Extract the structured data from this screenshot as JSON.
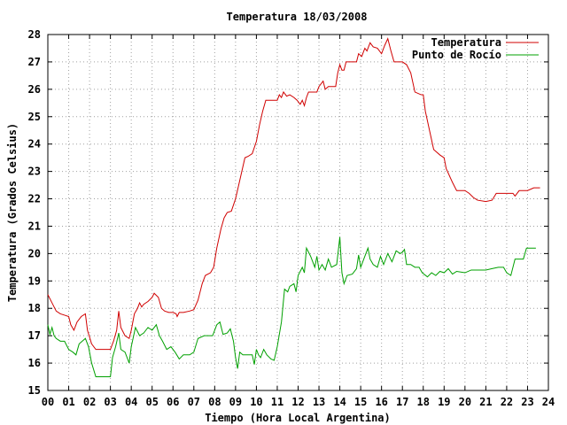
{
  "chart_data": {
    "type": "line",
    "title": "Temperatura 18/03/2008",
    "xlabel": "Tiempo (Hora Local Argentina)",
    "ylabel": "Temperatura (Grados Celsius)",
    "xlim": [
      0,
      24
    ],
    "ylim": [
      15,
      28
    ],
    "grid": true,
    "legend_position": "top-right",
    "x_ticks": [
      {
        "v": 0,
        "label": "00"
      },
      {
        "v": 1,
        "label": "01"
      },
      {
        "v": 2,
        "label": "02"
      },
      {
        "v": 3,
        "label": "03"
      },
      {
        "v": 4,
        "label": "04"
      },
      {
        "v": 5,
        "label": "05"
      },
      {
        "v": 6,
        "label": "06"
      },
      {
        "v": 7,
        "label": "07"
      },
      {
        "v": 8,
        "label": "08"
      },
      {
        "v": 9,
        "label": "09"
      },
      {
        "v": 10,
        "label": "10"
      },
      {
        "v": 11,
        "label": "11"
      },
      {
        "v": 12,
        "label": "12"
      },
      {
        "v": 13,
        "label": "13"
      },
      {
        "v": 14,
        "label": "14"
      },
      {
        "v": 15,
        "label": "15"
      },
      {
        "v": 16,
        "label": "16"
      },
      {
        "v": 17,
        "label": "17"
      },
      {
        "v": 18,
        "label": "18"
      },
      {
        "v": 19,
        "label": "19"
      },
      {
        "v": 20,
        "label": "20"
      },
      {
        "v": 21,
        "label": "21"
      },
      {
        "v": 22,
        "label": "22"
      },
      {
        "v": 23,
        "label": "23"
      },
      {
        "v": 24,
        "label": "24"
      }
    ],
    "y_ticks": [
      {
        "v": 15,
        "label": "15"
      },
      {
        "v": 16,
        "label": "16"
      },
      {
        "v": 17,
        "label": "17"
      },
      {
        "v": 18,
        "label": "18"
      },
      {
        "v": 19,
        "label": "19"
      },
      {
        "v": 20,
        "label": "20"
      },
      {
        "v": 21,
        "label": "21"
      },
      {
        "v": 22,
        "label": "22"
      },
      {
        "v": 23,
        "label": "23"
      },
      {
        "v": 24,
        "label": "24"
      },
      {
        "v": 25,
        "label": "25"
      },
      {
        "v": 26,
        "label": "26"
      },
      {
        "v": 27,
        "label": "27"
      },
      {
        "v": 28,
        "label": "28"
      }
    ],
    "series": [
      {
        "name": "Temperatura",
        "color": "#d00000",
        "points": [
          [
            0.0,
            18.5
          ],
          [
            0.2,
            18.2
          ],
          [
            0.4,
            17.9
          ],
          [
            0.6,
            17.8
          ],
          [
            0.8,
            17.75
          ],
          [
            1.0,
            17.7
          ],
          [
            1.1,
            17.4
          ],
          [
            1.25,
            17.2
          ],
          [
            1.4,
            17.5
          ],
          [
            1.6,
            17.7
          ],
          [
            1.8,
            17.8
          ],
          [
            1.9,
            17.2
          ],
          [
            2.1,
            16.7
          ],
          [
            2.3,
            16.5
          ],
          [
            2.5,
            16.5
          ],
          [
            2.8,
            16.5
          ],
          [
            3.0,
            16.5
          ],
          [
            3.15,
            16.8
          ],
          [
            3.3,
            17.2
          ],
          [
            3.4,
            17.9
          ],
          [
            3.5,
            17.3
          ],
          [
            3.7,
            17.0
          ],
          [
            3.9,
            16.9
          ],
          [
            4.0,
            17.2
          ],
          [
            4.15,
            17.8
          ],
          [
            4.3,
            18.0
          ],
          [
            4.4,
            18.2
          ],
          [
            4.5,
            18.05
          ],
          [
            4.6,
            18.15
          ],
          [
            4.8,
            18.25
          ],
          [
            5.0,
            18.4
          ],
          [
            5.1,
            18.55
          ],
          [
            5.3,
            18.4
          ],
          [
            5.45,
            18.0
          ],
          [
            5.6,
            17.9
          ],
          [
            5.8,
            17.85
          ],
          [
            6.0,
            17.85
          ],
          [
            6.15,
            17.8
          ],
          [
            6.2,
            17.7
          ],
          [
            6.3,
            17.85
          ],
          [
            6.5,
            17.85
          ],
          [
            6.8,
            17.9
          ],
          [
            7.0,
            17.95
          ],
          [
            7.2,
            18.3
          ],
          [
            7.4,
            18.9
          ],
          [
            7.55,
            19.2
          ],
          [
            7.8,
            19.3
          ],
          [
            7.95,
            19.5
          ],
          [
            8.1,
            20.2
          ],
          [
            8.3,
            20.9
          ],
          [
            8.45,
            21.3
          ],
          [
            8.6,
            21.5
          ],
          [
            8.8,
            21.55
          ],
          [
            9.0,
            22.0
          ],
          [
            9.15,
            22.5
          ],
          [
            9.3,
            23.0
          ],
          [
            9.45,
            23.5
          ],
          [
            9.6,
            23.55
          ],
          [
            9.8,
            23.65
          ],
          [
            10.0,
            24.1
          ],
          [
            10.15,
            24.7
          ],
          [
            10.3,
            25.2
          ],
          [
            10.45,
            25.6
          ],
          [
            10.6,
            25.6
          ],
          [
            11.0,
            25.6
          ],
          [
            11.1,
            25.8
          ],
          [
            11.2,
            25.7
          ],
          [
            11.3,
            25.9
          ],
          [
            11.45,
            25.75
          ],
          [
            11.6,
            25.8
          ],
          [
            11.8,
            25.7
          ],
          [
            11.95,
            25.6
          ],
          [
            12.1,
            25.45
          ],
          [
            12.2,
            25.6
          ],
          [
            12.3,
            25.4
          ],
          [
            12.4,
            25.7
          ],
          [
            12.5,
            25.9
          ],
          [
            12.7,
            25.9
          ],
          [
            12.9,
            25.9
          ],
          [
            13.0,
            26.1
          ],
          [
            13.2,
            26.3
          ],
          [
            13.3,
            26.0
          ],
          [
            13.45,
            26.1
          ],
          [
            13.8,
            26.1
          ],
          [
            13.9,
            26.6
          ],
          [
            14.0,
            26.9
          ],
          [
            14.1,
            26.7
          ],
          [
            14.2,
            26.7
          ],
          [
            14.3,
            27.0
          ],
          [
            14.8,
            27.0
          ],
          [
            14.9,
            27.3
          ],
          [
            15.05,
            27.2
          ],
          [
            15.2,
            27.5
          ],
          [
            15.3,
            27.4
          ],
          [
            15.45,
            27.7
          ],
          [
            15.6,
            27.55
          ],
          [
            15.8,
            27.5
          ],
          [
            16.0,
            27.3
          ],
          [
            16.15,
            27.6
          ],
          [
            16.3,
            27.85
          ],
          [
            16.45,
            27.4
          ],
          [
            16.6,
            27.0
          ],
          [
            17.0,
            27.0
          ],
          [
            17.2,
            26.9
          ],
          [
            17.4,
            26.6
          ],
          [
            17.6,
            25.9
          ],
          [
            17.9,
            25.8
          ],
          [
            18.0,
            25.8
          ],
          [
            18.1,
            25.2
          ],
          [
            18.3,
            24.5
          ],
          [
            18.5,
            23.8
          ],
          [
            18.8,
            23.6
          ],
          [
            19.0,
            23.5
          ],
          [
            19.1,
            23.1
          ],
          [
            19.4,
            22.6
          ],
          [
            19.6,
            22.3
          ],
          [
            20.0,
            22.3
          ],
          [
            20.2,
            22.2
          ],
          [
            20.4,
            22.05
          ],
          [
            20.6,
            21.95
          ],
          [
            21.0,
            21.9
          ],
          [
            21.3,
            21.95
          ],
          [
            21.5,
            22.2
          ],
          [
            22.0,
            22.2
          ],
          [
            22.3,
            22.2
          ],
          [
            22.4,
            22.1
          ],
          [
            22.6,
            22.3
          ],
          [
            23.0,
            22.3
          ],
          [
            23.3,
            22.4
          ],
          [
            23.6,
            22.4
          ]
        ]
      },
      {
        "name": "Punto de Rocío",
        "color": "#00a000",
        "points": [
          [
            0.0,
            17.4
          ],
          [
            0.1,
            17.05
          ],
          [
            0.2,
            17.3
          ],
          [
            0.3,
            17.0
          ],
          [
            0.4,
            16.9
          ],
          [
            0.6,
            16.8
          ],
          [
            0.8,
            16.8
          ],
          [
            1.0,
            16.5
          ],
          [
            1.2,
            16.4
          ],
          [
            1.35,
            16.3
          ],
          [
            1.5,
            16.7
          ],
          [
            1.8,
            16.9
          ],
          [
            1.95,
            16.6
          ],
          [
            2.1,
            16.0
          ],
          [
            2.3,
            15.5
          ],
          [
            2.6,
            15.5
          ],
          [
            3.0,
            15.5
          ],
          [
            3.1,
            16.2
          ],
          [
            3.25,
            16.6
          ],
          [
            3.4,
            17.1
          ],
          [
            3.5,
            16.5
          ],
          [
            3.7,
            16.4
          ],
          [
            3.9,
            16.0
          ],
          [
            4.0,
            16.6
          ],
          [
            4.2,
            17.3
          ],
          [
            4.4,
            17.0
          ],
          [
            4.6,
            17.1
          ],
          [
            4.8,
            17.3
          ],
          [
            5.0,
            17.2
          ],
          [
            5.2,
            17.4
          ],
          [
            5.35,
            17.0
          ],
          [
            5.5,
            16.8
          ],
          [
            5.7,
            16.5
          ],
          [
            5.9,
            16.6
          ],
          [
            6.1,
            16.4
          ],
          [
            6.3,
            16.15
          ],
          [
            6.5,
            16.3
          ],
          [
            6.8,
            16.3
          ],
          [
            7.0,
            16.4
          ],
          [
            7.2,
            16.9
          ],
          [
            7.5,
            17.0
          ],
          [
            7.9,
            17.0
          ],
          [
            8.1,
            17.4
          ],
          [
            8.25,
            17.5
          ],
          [
            8.4,
            17.05
          ],
          [
            8.6,
            17.1
          ],
          [
            8.75,
            17.25
          ],
          [
            8.9,
            16.8
          ],
          [
            9.0,
            16.2
          ],
          [
            9.1,
            15.8
          ],
          [
            9.2,
            16.4
          ],
          [
            9.35,
            16.3
          ],
          [
            9.6,
            16.3
          ],
          [
            9.8,
            16.3
          ],
          [
            9.9,
            15.95
          ],
          [
            10.0,
            16.5
          ],
          [
            10.1,
            16.3
          ],
          [
            10.2,
            16.2
          ],
          [
            10.35,
            16.5
          ],
          [
            10.5,
            16.3
          ],
          [
            10.7,
            16.15
          ],
          [
            10.85,
            16.1
          ],
          [
            11.0,
            16.6
          ],
          [
            11.2,
            17.5
          ],
          [
            11.35,
            18.7
          ],
          [
            11.5,
            18.6
          ],
          [
            11.6,
            18.8
          ],
          [
            11.8,
            18.9
          ],
          [
            11.9,
            18.6
          ],
          [
            12.0,
            19.2
          ],
          [
            12.2,
            19.5
          ],
          [
            12.3,
            19.3
          ],
          [
            12.4,
            20.2
          ],
          [
            12.6,
            19.9
          ],
          [
            12.8,
            19.5
          ],
          [
            12.9,
            19.9
          ],
          [
            13.0,
            19.4
          ],
          [
            13.15,
            19.6
          ],
          [
            13.3,
            19.4
          ],
          [
            13.45,
            19.8
          ],
          [
            13.6,
            19.5
          ],
          [
            13.85,
            19.6
          ],
          [
            14.0,
            20.6
          ],
          [
            14.1,
            19.3
          ],
          [
            14.2,
            18.9
          ],
          [
            14.35,
            19.2
          ],
          [
            14.6,
            19.25
          ],
          [
            14.8,
            19.45
          ],
          [
            14.9,
            19.95
          ],
          [
            15.0,
            19.5
          ],
          [
            15.2,
            19.9
          ],
          [
            15.35,
            20.2
          ],
          [
            15.45,
            19.8
          ],
          [
            15.6,
            19.6
          ],
          [
            15.8,
            19.5
          ],
          [
            15.95,
            19.9
          ],
          [
            16.1,
            19.6
          ],
          [
            16.3,
            20.0
          ],
          [
            16.5,
            19.7
          ],
          [
            16.7,
            20.1
          ],
          [
            16.9,
            20.0
          ],
          [
            17.0,
            20.05
          ],
          [
            17.1,
            20.15
          ],
          [
            17.2,
            19.6
          ],
          [
            17.4,
            19.6
          ],
          [
            17.6,
            19.5
          ],
          [
            17.8,
            19.5
          ],
          [
            17.95,
            19.3
          ],
          [
            18.2,
            19.15
          ],
          [
            18.4,
            19.3
          ],
          [
            18.6,
            19.2
          ],
          [
            18.8,
            19.35
          ],
          [
            19.0,
            19.3
          ],
          [
            19.2,
            19.45
          ],
          [
            19.4,
            19.25
          ],
          [
            19.6,
            19.35
          ],
          [
            20.0,
            19.3
          ],
          [
            20.3,
            19.4
          ],
          [
            20.6,
            19.4
          ],
          [
            21.0,
            19.4
          ],
          [
            21.3,
            19.45
          ],
          [
            21.6,
            19.5
          ],
          [
            21.85,
            19.5
          ],
          [
            22.0,
            19.3
          ],
          [
            22.2,
            19.2
          ],
          [
            22.4,
            19.8
          ],
          [
            22.8,
            19.8
          ],
          [
            22.95,
            20.2
          ],
          [
            23.4,
            20.2
          ]
        ]
      }
    ]
  }
}
